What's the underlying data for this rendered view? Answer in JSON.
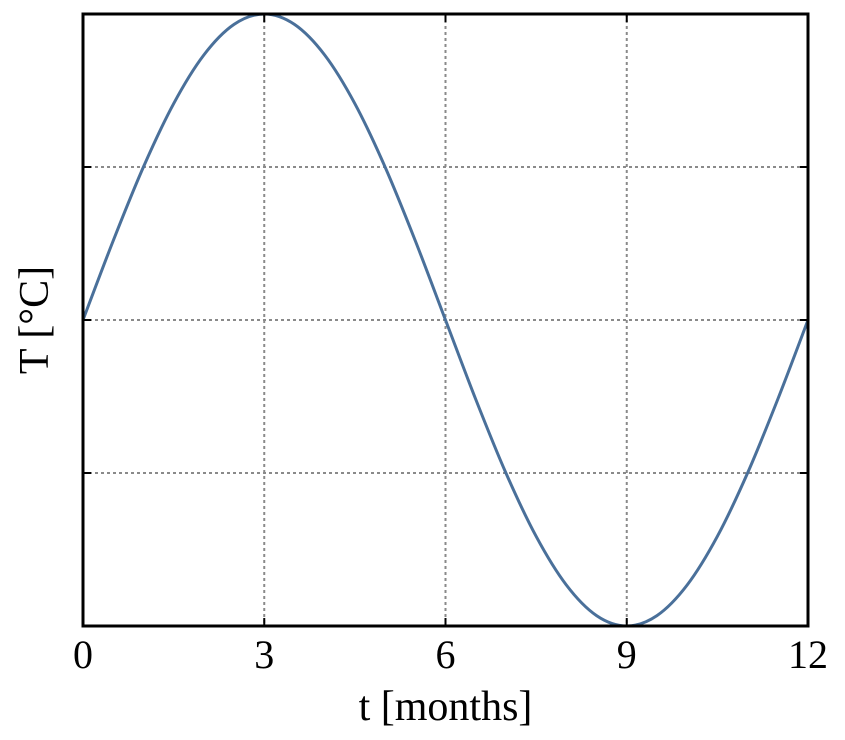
{
  "chart_data": {
    "type": "line",
    "xlabel": "t [months]",
    "ylabel": "T [°C]",
    "xlim": [
      0,
      12
    ],
    "ylim": [
      -1,
      1
    ],
    "xticks": [
      0,
      3,
      6,
      9,
      12
    ],
    "xtick_labels": [
      "0",
      "3",
      "6",
      "9",
      "12"
    ],
    "yticks": [
      -0.5,
      0,
      0.5
    ],
    "ytick_labels": [
      "",
      "",
      ""
    ],
    "grid": true,
    "series": [
      {
        "color": "#4a709a",
        "x": [
          0,
          0.5,
          1,
          1.5,
          2,
          2.5,
          3,
          3.5,
          4,
          4.5,
          5,
          5.5,
          6,
          6.5,
          7,
          7.5,
          8,
          8.5,
          9,
          9.5,
          10,
          10.5,
          11,
          11.5,
          12
        ],
        "y": [
          0,
          0.259,
          0.5,
          0.707,
          0.866,
          0.966,
          1,
          0.966,
          0.866,
          0.707,
          0.5,
          0.259,
          0,
          -0.259,
          -0.5,
          -0.707,
          -0.866,
          -0.966,
          -1,
          -0.966,
          -0.866,
          -0.707,
          -0.5,
          -0.259,
          0
        ]
      }
    ]
  }
}
